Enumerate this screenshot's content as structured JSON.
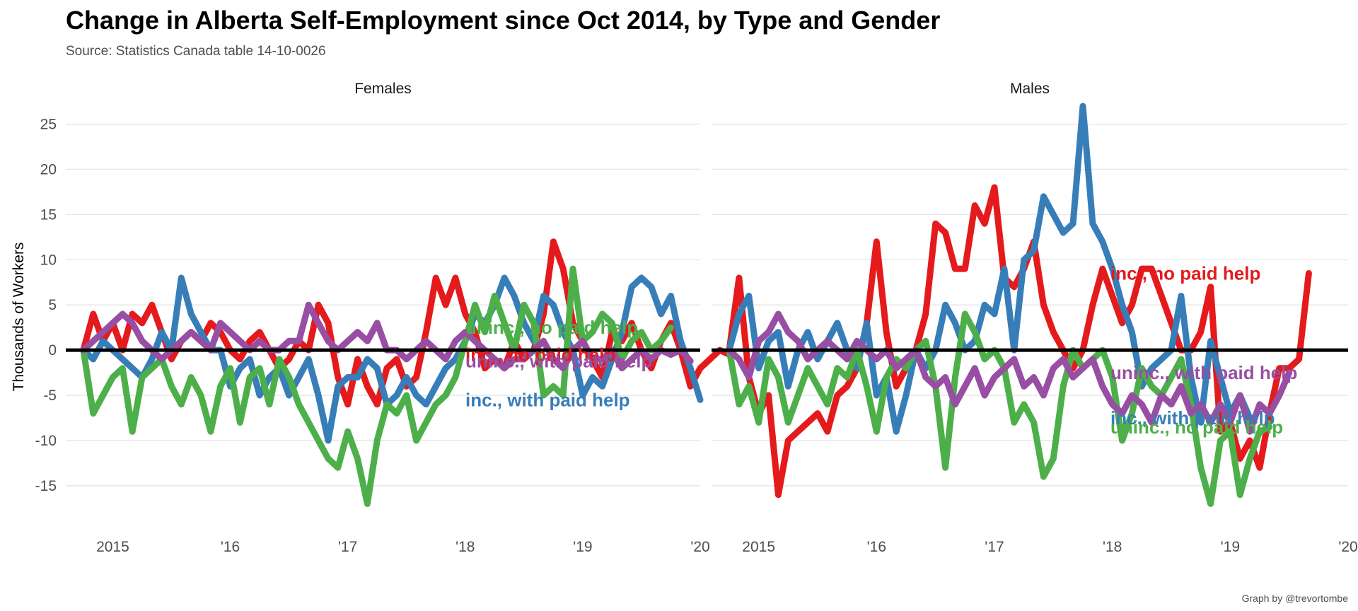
{
  "header": {
    "title": "Change in Alberta Self-Employment since Oct 2014, by Type and Gender",
    "subtitle": "Source: Statistics Canada table 14-10-0026"
  },
  "caption": "Graph by @trevortombe",
  "chart_data": {
    "type": "line",
    "title": "Change in Alberta Self-Employment since Oct 2014, by Type and Gender",
    "ylabel": "Thousands of Workers",
    "xlabel": "",
    "ylim": [
      -19,
      27
    ],
    "xlim": [
      2014.6,
      2020.0
    ],
    "yticks": [
      25,
      20,
      15,
      10,
      5,
      0,
      -5,
      -10,
      -15
    ],
    "yticklabels": [
      "25",
      "20",
      "15",
      "10",
      "5",
      "0",
      "-5",
      "-10",
      "-15"
    ],
    "xticks": [
      2015,
      2016,
      2017,
      2018,
      2019,
      2020
    ],
    "xticklabels": [
      "2015",
      "'16",
      "'17",
      "'18",
      "'19",
      "'20"
    ],
    "grid": true,
    "zero_line": true,
    "legend": "direct labels at line ends",
    "colors": {
      "inc_no_paid_help": "#e41a1c",
      "inc_with_paid_help": "#377eb8",
      "uninc_no_paid_help": "#4daf4a",
      "uninc_with_paid_help": "#984ea3"
    },
    "x_start": 2014.75,
    "x_step": 0.0833333,
    "panels": [
      {
        "name": "Females",
        "series": [
          {
            "name": "inc., no paid help",
            "color": "#e41a1c",
            "label_value": -0.5,
            "values": [
              0,
              4,
              1,
              3,
              0,
              4,
              3,
              5,
              2,
              -1,
              1,
              2,
              1,
              3,
              2,
              0,
              -1,
              1,
              2,
              0,
              -2,
              -1,
              1,
              0,
              5,
              3,
              -3,
              -6,
              -1,
              -4,
              -6,
              -2,
              -1,
              -4,
              -3,
              2,
              8,
              5,
              8,
              4,
              2,
              -2,
              -1,
              -2,
              1,
              -1,
              0,
              4,
              12,
              9,
              3,
              1,
              -1,
              -3,
              2,
              1,
              3,
              0,
              -2,
              1,
              3,
              0,
              -4,
              -2,
              -1,
              0,
              -0.5
            ]
          },
          {
            "name": "inc., with paid help",
            "color": "#377eb8",
            "label_value": -5.5,
            "values": [
              0,
              -1,
              1,
              0,
              -1,
              -2,
              -3,
              -1,
              2,
              0,
              8,
              4,
              2,
              0,
              0,
              -4,
              -2,
              -1,
              -5,
              -3,
              -2,
              -5,
              -3,
              -1,
              -5,
              -10,
              -4,
              -3,
              -3,
              -1,
              -2,
              -6,
              -5,
              -3,
              -5,
              -6,
              -4,
              -2,
              -1,
              1,
              4,
              3,
              5,
              8,
              6,
              3,
              1,
              6,
              5,
              2,
              0,
              -5,
              -3,
              -4,
              -1,
              2,
              7,
              8,
              7,
              4,
              6,
              1,
              -2,
              -5.5
            ]
          },
          {
            "name": "uninc., no paid help",
            "color": "#4daf4a",
            "label_value": 2.5,
            "values": [
              0,
              -7,
              -5,
              -3,
              -2,
              -9,
              -3,
              -2,
              -1,
              -4,
              -6,
              -3,
              -5,
              -9,
              -4,
              -2,
              -8,
              -3,
              -2,
              -6,
              -1,
              -3,
              -6,
              -8,
              -10,
              -12,
              -13,
              -9,
              -12,
              -17,
              -10,
              -6,
              -7,
              -5,
              -10,
              -8,
              -6,
              -5,
              -3,
              1,
              5,
              2,
              6,
              3,
              0,
              5,
              3,
              -5,
              -4,
              -5,
              9,
              1,
              2,
              4,
              3,
              -1,
              1,
              2,
              0,
              1,
              2.5
            ]
          },
          {
            "name": "uninc., with paid help",
            "color": "#984ea3",
            "label_value": -1.2,
            "values": [
              0,
              1,
              2,
              3,
              4,
              3,
              1,
              0,
              -1,
              0,
              1,
              2,
              1,
              0,
              3,
              2,
              1,
              0,
              1,
              0,
              0,
              1,
              1,
              5,
              3,
              1,
              0,
              1,
              2,
              1,
              3,
              0,
              0,
              -1,
              0,
              1,
              0,
              -1,
              1,
              2,
              1,
              0,
              -1,
              -2,
              -1,
              -1,
              0,
              1,
              -1,
              -2,
              0,
              1,
              -1,
              -1,
              0,
              -2,
              -1,
              0,
              -1,
              0,
              -0.5,
              0,
              -1.2
            ]
          }
        ]
      },
      {
        "name": "Males",
        "series": [
          {
            "name": "inc., no paid help",
            "color": "#e41a1c",
            "label_value": 8.5,
            "values": [
              0,
              8,
              -3,
              -7,
              -5,
              -16,
              -10,
              -9,
              -8,
              -7,
              -9,
              -5,
              -4,
              -2,
              3,
              12,
              2,
              -4,
              -2,
              0,
              4,
              14,
              13,
              9,
              9,
              16,
              14,
              18,
              8,
              7,
              9,
              12,
              5,
              2,
              0,
              -2,
              0,
              5,
              9,
              6,
              3,
              5,
              9,
              9,
              6,
              3,
              0,
              0,
              2,
              7,
              -9,
              -8,
              -12,
              -10,
              -13,
              -7,
              -2,
              -2,
              -1,
              8.5
            ]
          },
          {
            "name": "inc., with paid help",
            "color": "#377eb8",
            "label_value": -7.5,
            "values": [
              0,
              4,
              6,
              -2,
              1,
              2,
              -4,
              0,
              2,
              -1,
              1,
              3,
              0,
              -2,
              3,
              -5,
              -3,
              -9,
              -5,
              0,
              -2,
              0,
              5,
              3,
              0,
              1,
              5,
              4,
              9,
              0,
              10,
              11,
              17,
              15,
              13,
              14,
              27,
              14,
              12,
              9,
              5,
              2,
              -4,
              -2,
              -1,
              0,
              6,
              -3,
              -8,
              1,
              -3,
              -7,
              -5,
              -7.5
            ]
          },
          {
            "name": "uninc., no paid help",
            "color": "#4daf4a",
            "label_value": -8.5,
            "values": [
              0,
              -6,
              -4,
              -8,
              -1,
              -3,
              -8,
              -5,
              -2,
              -4,
              -6,
              -2,
              -3,
              0,
              -4,
              -9,
              -3,
              -1,
              -2,
              0,
              1,
              -4,
              -13,
              -3,
              4,
              2,
              -1,
              0,
              -2,
              -8,
              -6,
              -8,
              -14,
              -12,
              -4,
              0,
              -2,
              -1,
              0,
              -3,
              -10,
              -7,
              -2,
              -4,
              -5,
              -3,
              -1,
              -6,
              -13,
              -17,
              -10,
              -9,
              -16,
              -12,
              -9,
              -8.5
            ]
          },
          {
            "name": "uninc., with paid help",
            "color": "#984ea3",
            "label_value": -2.5,
            "values": [
              0,
              -1,
              -3,
              1,
              2,
              4,
              2,
              1,
              -1,
              0,
              1,
              0,
              -1,
              1,
              0,
              -1,
              0,
              -2,
              -1,
              0,
              -3,
              -4,
              -3,
              -6,
              -4,
              -2,
              -5,
              -3,
              -2,
              -1,
              -4,
              -3,
              -5,
              -2,
              -1,
              -3,
              -2,
              -1,
              -4,
              -6,
              -7,
              -5,
              -6,
              -8,
              -5,
              -6,
              -4,
              -7,
              -6,
              -8,
              -6,
              -8,
              -5,
              -9,
              -6,
              -7,
              -5,
              -2.5
            ]
          }
        ]
      }
    ]
  }
}
